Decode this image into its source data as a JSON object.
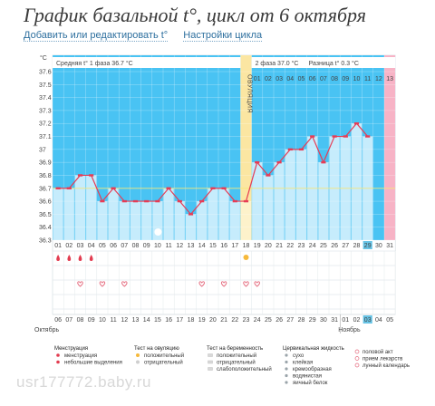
{
  "header": {
    "title": "График базальной t°, цикл от 6 октября",
    "link_add": "Добавить или редактировать t°",
    "link_settings": "Настройки цикла"
  },
  "chart_data": {
    "type": "line",
    "unit_label": "°C",
    "ylim": [
      36.3,
      37.6
    ],
    "yticks": [
      "37.6",
      "37.5",
      "37.4",
      "37.3",
      "37.2",
      "37.1",
      "37",
      "36.9",
      "36.8",
      "36.7",
      "36.6",
      "36.5",
      "36.4",
      "36.3"
    ],
    "days": [
      "01",
      "02",
      "03",
      "04",
      "05",
      "06",
      "07",
      "08",
      "09",
      "10",
      "11",
      "12",
      "13",
      "14",
      "15",
      "16",
      "17",
      "18",
      "19",
      "20",
      "21",
      "22",
      "23",
      "24",
      "25",
      "26",
      "27",
      "28",
      "29",
      "30",
      "31"
    ],
    "temps": [
      36.7,
      36.7,
      36.8,
      36.8,
      36.6,
      36.7,
      36.6,
      36.6,
      36.6,
      36.6,
      36.7,
      36.6,
      36.5,
      36.6,
      36.7,
      36.7,
      36.6,
      36.6,
      36.9,
      36.8,
      36.9,
      37.0,
      37.0,
      37.1,
      36.9,
      37.1,
      37.1,
      37.2,
      37.1,
      null,
      null
    ],
    "ovulation_label": "ОВУЛЯЦИЯ",
    "phase2_days": [
      "01",
      "02",
      "03",
      "04",
      "05",
      "06",
      "07",
      "08",
      "09",
      "10",
      "11",
      "12",
      "13"
    ],
    "current_day": "29",
    "info_phase1": "Средняя t° 1 фаза  36.7 °C",
    "info_phase2": "2 фаза  37.0 °C",
    "info_diff": "Разница t°  0.3 °C",
    "cover_line": 36.7,
    "dates": [
      "06",
      "07",
      "08",
      "09",
      "10",
      "11",
      "12",
      "13",
      "14",
      "15",
      "16",
      "17",
      "18",
      "19",
      "20",
      "21",
      "22",
      "23",
      "24",
      "25",
      "26",
      "27",
      "28",
      "29",
      "30",
      "31",
      "01",
      "02",
      "03",
      "04",
      "05"
    ],
    "weekend_idx": [
      0,
      6,
      7,
      13,
      14,
      20,
      21,
      27,
      28
    ],
    "today_idx": 28,
    "month_start": "Октябрь",
    "month_next": "Ноябрь",
    "menstruation_idx": [
      0,
      1,
      2,
      3
    ],
    "heart_idx": [
      2,
      4,
      6,
      13,
      15,
      17,
      18
    ],
    "ovulation_sun_idx": 17
  },
  "legend": {
    "menstruation": {
      "title": "Менструация",
      "items": [
        "менструация",
        "небольшие выделения"
      ]
    },
    "ovulation_test": {
      "title": "Тест на овуляцию",
      "items": [
        "положительный",
        "отрицательный"
      ]
    },
    "pregnancy_test": {
      "title": "Тест на беременность",
      "items": [
        "положительный",
        "отрицательный",
        "слабоположительный"
      ]
    },
    "cervical_fluid": {
      "title": "Цервикальная жидкость",
      "items": [
        "сухо",
        "клейкая",
        "кремообразная",
        "водянистая",
        "яичный белок"
      ]
    },
    "other": {
      "items": [
        "половой акт",
        "прием лекарств",
        "лунный календарь"
      ]
    }
  },
  "watermark": "usr177772.baby.ru",
  "colors": {
    "sky": "#49c3f3",
    "bar": "#c6ecfc",
    "ovulation": "#fbe6a2",
    "pink": "#f7b3c6",
    "line": "#e63c55",
    "today": "#67c4e6",
    "weekend": "#e23c50"
  }
}
